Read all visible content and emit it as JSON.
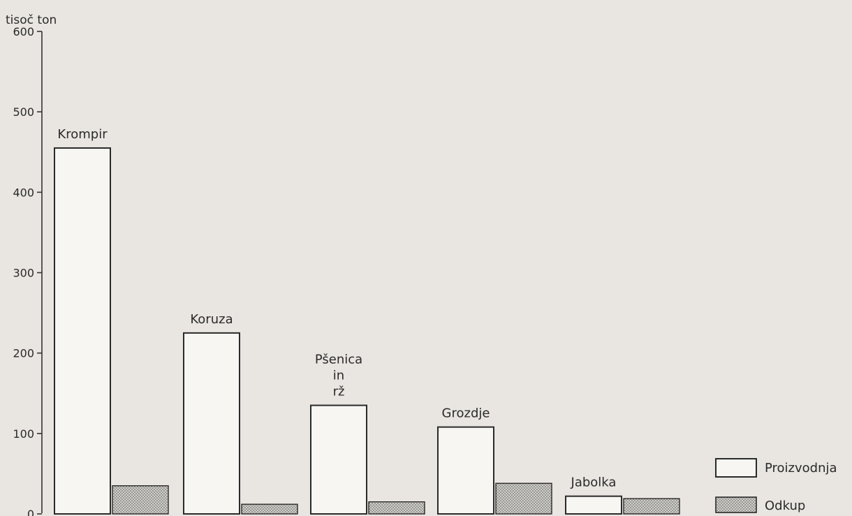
{
  "chart_data": {
    "type": "bar",
    "ylabel": "tisoč ton",
    "ylim": [
      0,
      600
    ],
    "yticks": [
      0,
      100,
      200,
      300,
      400,
      500,
      600
    ],
    "ytick_labels": [
      "0",
      "100",
      "200",
      "300",
      "400",
      "500",
      "600"
    ],
    "categories": [
      {
        "name": "Krompir",
        "lines": [
          "Krompir"
        ]
      },
      {
        "name": "Koruza",
        "lines": [
          "Koruza"
        ]
      },
      {
        "name": "Pšenica in rž",
        "lines": [
          "Pšenica",
          "in",
          "rž"
        ]
      },
      {
        "name": "Grozdje",
        "lines": [
          "Grozdje"
        ]
      },
      {
        "name": "Jabolka",
        "lines": [
          "Jabolka"
        ]
      }
    ],
    "series": [
      {
        "name": "Proizvodnja",
        "values": [
          455,
          225,
          135,
          108,
          22
        ],
        "fill": "#f7f6f3"
      },
      {
        "name": "Odkup",
        "values": [
          35,
          12,
          15,
          38,
          19
        ],
        "fill": "#b9b7b3"
      }
    ],
    "legend_position": "bottom-right",
    "grid": false
  }
}
